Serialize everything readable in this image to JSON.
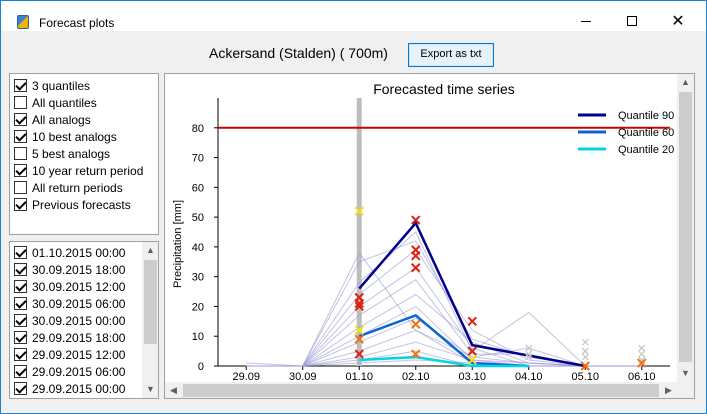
{
  "window": {
    "title": "Forecast plots",
    "icon": "app-logo-icon"
  },
  "header": {
    "station_label": "Ackersand (Stalden) ( 700m)",
    "export_label": "Export as txt"
  },
  "options": [
    {
      "label": "3 quantiles",
      "checked": true
    },
    {
      "label": "All quantiles",
      "checked": false
    },
    {
      "label": "All analogs",
      "checked": true
    },
    {
      "label": "10 best analogs",
      "checked": true
    },
    {
      "label": "5 best analogs",
      "checked": false
    },
    {
      "label": "10 year return period",
      "checked": true
    },
    {
      "label": "All return periods",
      "checked": false
    },
    {
      "label": "Previous forecasts",
      "checked": true
    }
  ],
  "dates": [
    {
      "label": "01.10.2015 00:00",
      "checked": true
    },
    {
      "label": "30.09.2015 18:00",
      "checked": true
    },
    {
      "label": "30.09.2015 12:00",
      "checked": true
    },
    {
      "label": "30.09.2015 06:00",
      "checked": true
    },
    {
      "label": "30.09.2015 00:00",
      "checked": true
    },
    {
      "label": "29.09.2015 18:00",
      "checked": true
    },
    {
      "label": "29.09.2015 12:00",
      "checked": true
    },
    {
      "label": "29.09.2015 06:00",
      "checked": true
    },
    {
      "label": "29.09.2015 00:00",
      "checked": true
    }
  ],
  "colors": {
    "q90": "#00008b",
    "q60": "#0a64d6",
    "q20": "#00d4e6",
    "return_period": "#cc0000",
    "analogs": "#9a9ad6",
    "forecast_marker": "#c8c8c8",
    "best_marker_red": "#e02010",
    "best_marker_orange": "#f07010",
    "best_marker_yellow": "#f0e020"
  },
  "chart_data": {
    "type": "line",
    "title": "Forecasted time series",
    "xlabel": "",
    "ylabel": "Precipitation [mm]",
    "categories": [
      "29.09",
      "30.09",
      "01.10",
      "02.10",
      "03.10",
      "04.10",
      "05.10",
      "06.10"
    ],
    "yticks": [
      0,
      10,
      20,
      30,
      40,
      50,
      60,
      70,
      80
    ],
    "ylim": [
      0,
      90
    ],
    "legend_position": "top-right",
    "current_date_index": 2,
    "return_period": {
      "value": 80
    },
    "series": [
      {
        "name": "Quantile 90",
        "key": "q90",
        "x": [
          2,
          3,
          4,
          6
        ],
        "values": [
          26,
          48,
          7,
          0
        ]
      },
      {
        "name": "Quantile 60",
        "key": "q60",
        "x": [
          2,
          3,
          4,
          5
        ],
        "values": [
          10,
          17,
          1,
          0
        ]
      },
      {
        "name": "Quantile 20",
        "key": "q20",
        "x": [
          2,
          3,
          4,
          5
        ],
        "values": [
          2,
          3,
          0,
          0
        ]
      }
    ],
    "analogs": [
      {
        "x": [
          0,
          1,
          2,
          3,
          4,
          5,
          6,
          7
        ],
        "values": [
          0,
          0,
          38,
          12,
          3,
          1,
          0,
          0
        ]
      },
      {
        "x": [
          0,
          1,
          2,
          3,
          4,
          5,
          6,
          7
        ],
        "values": [
          0,
          0,
          35,
          42,
          9,
          3,
          0,
          0
        ]
      },
      {
        "x": [
          0,
          1,
          2,
          3,
          4,
          5,
          6,
          7
        ],
        "values": [
          0,
          0,
          28,
          45,
          5,
          18,
          0,
          0
        ]
      },
      {
        "x": [
          0,
          1,
          2,
          3,
          4,
          5,
          6,
          7
        ],
        "values": [
          0,
          0,
          24,
          39,
          12,
          2,
          0,
          0
        ]
      },
      {
        "x": [
          0,
          1,
          2,
          3,
          4,
          5,
          6,
          7
        ],
        "values": [
          0,
          0,
          20,
          33,
          6,
          0,
          0,
          0
        ]
      },
      {
        "x": [
          0,
          1,
          2,
          3,
          4,
          5,
          6,
          7
        ],
        "values": [
          0,
          0,
          17,
          29,
          4,
          4,
          0,
          0
        ]
      },
      {
        "x": [
          0,
          1,
          2,
          3,
          4,
          5,
          6,
          7
        ],
        "values": [
          0,
          0,
          13,
          24,
          8,
          1,
          0,
          0
        ]
      },
      {
        "x": [
          0,
          1,
          2,
          3,
          4,
          5,
          6,
          7
        ],
        "values": [
          0,
          0,
          10,
          20,
          2,
          0,
          0,
          0
        ]
      },
      {
        "x": [
          0,
          1,
          2,
          3,
          4,
          5,
          6,
          7
        ],
        "values": [
          0,
          0,
          8,
          16,
          3,
          6,
          0,
          0
        ]
      },
      {
        "x": [
          0,
          1,
          2,
          3,
          4,
          5,
          6,
          7
        ],
        "values": [
          0,
          0,
          5,
          12,
          1,
          0,
          0,
          0
        ]
      },
      {
        "x": [
          0,
          1,
          2,
          3,
          4,
          5,
          6,
          7
        ],
        "values": [
          0,
          0,
          3,
          8,
          2,
          1,
          0,
          0
        ]
      },
      {
        "x": [
          0,
          1,
          2,
          3,
          4,
          5,
          6,
          7
        ],
        "values": [
          1,
          0,
          2,
          5,
          0,
          0,
          0,
          0
        ]
      },
      {
        "x": [
          0,
          1,
          2,
          3,
          4,
          5,
          6,
          7
        ],
        "values": [
          0,
          0,
          1,
          2,
          1,
          0,
          0,
          0
        ]
      }
    ],
    "best_analog_markers": [
      {
        "x": 2,
        "y": 23,
        "tone": "red"
      },
      {
        "x": 2,
        "y": 21,
        "tone": "red"
      },
      {
        "x": 2,
        "y": 20,
        "tone": "red"
      },
      {
        "x": 2,
        "y": 9,
        "tone": "orange"
      },
      {
        "x": 2,
        "y": 4,
        "tone": "red"
      },
      {
        "x": 2,
        "y": 52,
        "tone": "yellow"
      },
      {
        "x": 2,
        "y": 12,
        "tone": "yellow"
      },
      {
        "x": 3,
        "y": 49,
        "tone": "red"
      },
      {
        "x": 3,
        "y": 39,
        "tone": "red"
      },
      {
        "x": 3,
        "y": 37,
        "tone": "red"
      },
      {
        "x": 3,
        "y": 33,
        "tone": "red"
      },
      {
        "x": 3,
        "y": 14,
        "tone": "orange"
      },
      {
        "x": 3,
        "y": 4,
        "tone": "orange"
      },
      {
        "x": 4,
        "y": 15,
        "tone": "red"
      },
      {
        "x": 4,
        "y": 5,
        "tone": "red"
      },
      {
        "x": 4,
        "y": 2,
        "tone": "yellow"
      },
      {
        "x": 6,
        "y": 0,
        "tone": "orange"
      },
      {
        "x": 7,
        "y": 1,
        "tone": "orange"
      }
    ],
    "previous_forecast_markers": [
      {
        "x": 5,
        "y": 6
      },
      {
        "x": 5,
        "y": 4
      },
      {
        "x": 5,
        "y": 3
      },
      {
        "x": 6,
        "y": 8
      },
      {
        "x": 6,
        "y": 5
      },
      {
        "x": 6,
        "y": 3
      },
      {
        "x": 7,
        "y": 6
      },
      {
        "x": 7,
        "y": 4
      },
      {
        "x": 7,
        "y": 2
      }
    ]
  }
}
